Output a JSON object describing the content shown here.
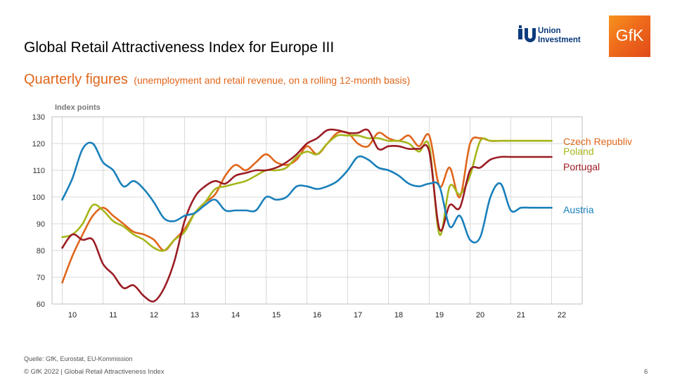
{
  "header": {
    "title": "Global Retail Attractiveness Index for Europe III",
    "subtitle_main": "Quarterly figures",
    "subtitle_note": "(unemployment  and retail revenue,  on a rolling 12-month basis)"
  },
  "logos": {
    "union_line1": "Union",
    "union_line2": "Investment",
    "gfk": "GfK"
  },
  "chart_data": {
    "type": "line",
    "ylabel": "Index points",
    "ylim": [
      60,
      130
    ],
    "yticks": [
      60,
      70,
      80,
      90,
      100,
      110,
      120,
      130
    ],
    "xlim": [
      2009.75,
      2022.75
    ],
    "xticks": [
      {
        "label": "10",
        "x": 2010.25
      },
      {
        "label": "11",
        "x": 2011.25
      },
      {
        "label": "12",
        "x": 2012.25
      },
      {
        "label": "13",
        "x": 2013.25
      },
      {
        "label": "14",
        "x": 2014.25
      },
      {
        "label": "15",
        "x": 2015.25
      },
      {
        "label": "16",
        "x": 2016.25
      },
      {
        "label": "17",
        "x": 2017.25
      },
      {
        "label": "18",
        "x": 2018.25
      },
      {
        "label": "19",
        "x": 2019.25
      },
      {
        "label": "20",
        "x": 2020.25
      },
      {
        "label": "21",
        "x": 2021.25
      },
      {
        "label": "22",
        "x": 2022.25
      }
    ],
    "grid": true,
    "series": [
      {
        "name": "Czech Republiv",
        "color": "#e0661b",
        "x": [
          2010.0,
          2010.25,
          2010.5,
          2010.75,
          2011.0,
          2011.25,
          2011.5,
          2011.75,
          2012.0,
          2012.25,
          2012.5,
          2012.75,
          2013.0,
          2013.25,
          2013.5,
          2013.75,
          2014.0,
          2014.25,
          2014.5,
          2014.75,
          2015.0,
          2015.25,
          2015.5,
          2015.75,
          2016.0,
          2016.25,
          2016.5,
          2016.75,
          2017.0,
          2017.25,
          2017.5,
          2017.75,
          2018.0,
          2018.25,
          2018.5,
          2018.75,
          2019.0,
          2019.25,
          2019.5,
          2019.75,
          2020.0,
          2020.25,
          2020.5,
          2020.75,
          2021.0,
          2021.25,
          2021.5,
          2021.75,
          2022.0
        ],
        "y": [
          68,
          78,
          86,
          93,
          96,
          93,
          90,
          87,
          86,
          84,
          80,
          84,
          88,
          94,
          98,
          101,
          108,
          112,
          110,
          113,
          116,
          113,
          112,
          114,
          119,
          116,
          120,
          124,
          124,
          120,
          119,
          124,
          122,
          121,
          123,
          119,
          123,
          104,
          111,
          100,
          120,
          122,
          121,
          121,
          121,
          121,
          121,
          121,
          121
        ]
      },
      {
        "name": "Poland",
        "color": "#a6b61a",
        "x": [
          2010.0,
          2010.25,
          2010.5,
          2010.75,
          2011.0,
          2011.25,
          2011.5,
          2011.75,
          2012.0,
          2012.25,
          2012.5,
          2012.75,
          2013.0,
          2013.25,
          2013.5,
          2013.75,
          2014.0,
          2014.25,
          2014.5,
          2014.75,
          2015.0,
          2015.25,
          2015.5,
          2015.75,
          2016.0,
          2016.25,
          2016.5,
          2016.75,
          2017.0,
          2017.25,
          2017.5,
          2017.75,
          2018.0,
          2018.25,
          2018.5,
          2018.75,
          2019.0,
          2019.25,
          2019.5,
          2019.75,
          2020.0,
          2020.25,
          2020.5,
          2020.75,
          2021.0,
          2021.25,
          2021.5,
          2021.75,
          2022.0
        ],
        "y": [
          85,
          86,
          90,
          97,
          95,
          91,
          89,
          86,
          84,
          81,
          80,
          84,
          87,
          94,
          98,
          103,
          104,
          105,
          106,
          108,
          110,
          110,
          111,
          115,
          117,
          116,
          120,
          123,
          123,
          123,
          122,
          122,
          121,
          121,
          120,
          117,
          119,
          86,
          104,
          101,
          108,
          121,
          121,
          121,
          121,
          121,
          121,
          121,
          121
        ]
      },
      {
        "name": "Portugal",
        "color": "#9b1c24",
        "x": [
          2010.0,
          2010.25,
          2010.5,
          2010.75,
          2011.0,
          2011.25,
          2011.5,
          2011.75,
          2012.0,
          2012.25,
          2012.5,
          2012.75,
          2013.0,
          2013.25,
          2013.5,
          2013.75,
          2014.0,
          2014.25,
          2014.5,
          2014.75,
          2015.0,
          2015.25,
          2015.5,
          2015.75,
          2016.0,
          2016.25,
          2016.5,
          2016.75,
          2017.0,
          2017.25,
          2017.5,
          2017.75,
          2018.0,
          2018.25,
          2018.5,
          2018.75,
          2019.0,
          2019.25,
          2019.5,
          2019.75,
          2020.0,
          2020.25,
          2020.5,
          2020.75,
          2021.0,
          2021.25,
          2021.5,
          2021.75,
          2022.0
        ],
        "y": [
          81,
          86,
          84,
          84,
          75,
          71,
          66,
          67,
          63,
          61,
          66,
          76,
          91,
          100,
          104,
          106,
          105,
          108,
          109,
          110,
          110,
          111,
          113,
          116,
          120,
          122,
          125,
          125,
          124,
          124,
          125,
          118,
          119,
          119,
          118,
          118,
          117,
          88,
          97,
          96,
          110,
          111,
          114,
          115,
          115,
          115,
          115,
          115,
          115
        ]
      },
      {
        "name": "Austria",
        "color": "#1a80bb",
        "x": [
          2010.0,
          2010.25,
          2010.5,
          2010.75,
          2011.0,
          2011.25,
          2011.5,
          2011.75,
          2012.0,
          2012.25,
          2012.5,
          2012.75,
          2013.0,
          2013.25,
          2013.5,
          2013.75,
          2014.0,
          2014.25,
          2014.5,
          2014.75,
          2015.0,
          2015.25,
          2015.5,
          2015.75,
          2016.0,
          2016.25,
          2016.5,
          2016.75,
          2017.0,
          2017.25,
          2017.5,
          2017.75,
          2018.0,
          2018.25,
          2018.5,
          2018.75,
          2019.0,
          2019.25,
          2019.5,
          2019.75,
          2020.0,
          2020.25,
          2020.5,
          2020.75,
          2021.0,
          2021.25,
          2021.5,
          2021.75,
          2022.0
        ],
        "y": [
          99,
          107,
          118,
          120,
          113,
          110,
          104,
          106,
          103,
          98,
          92,
          91,
          93,
          94,
          97,
          99,
          95,
          95,
          95,
          95,
          100,
          99,
          100,
          104,
          104,
          103,
          104,
          106,
          110,
          115,
          114,
          111,
          110,
          108,
          105,
          104,
          105,
          104,
          89,
          93,
          84,
          85,
          100,
          105,
          95,
          96,
          96,
          96,
          96
        ]
      }
    ]
  },
  "footer": {
    "source": "Quelle: GfK, Eurostat, EU-Kommission",
    "copyright": "© GfK 2022 | Global Retail Attractiveness Index",
    "page": "6"
  }
}
